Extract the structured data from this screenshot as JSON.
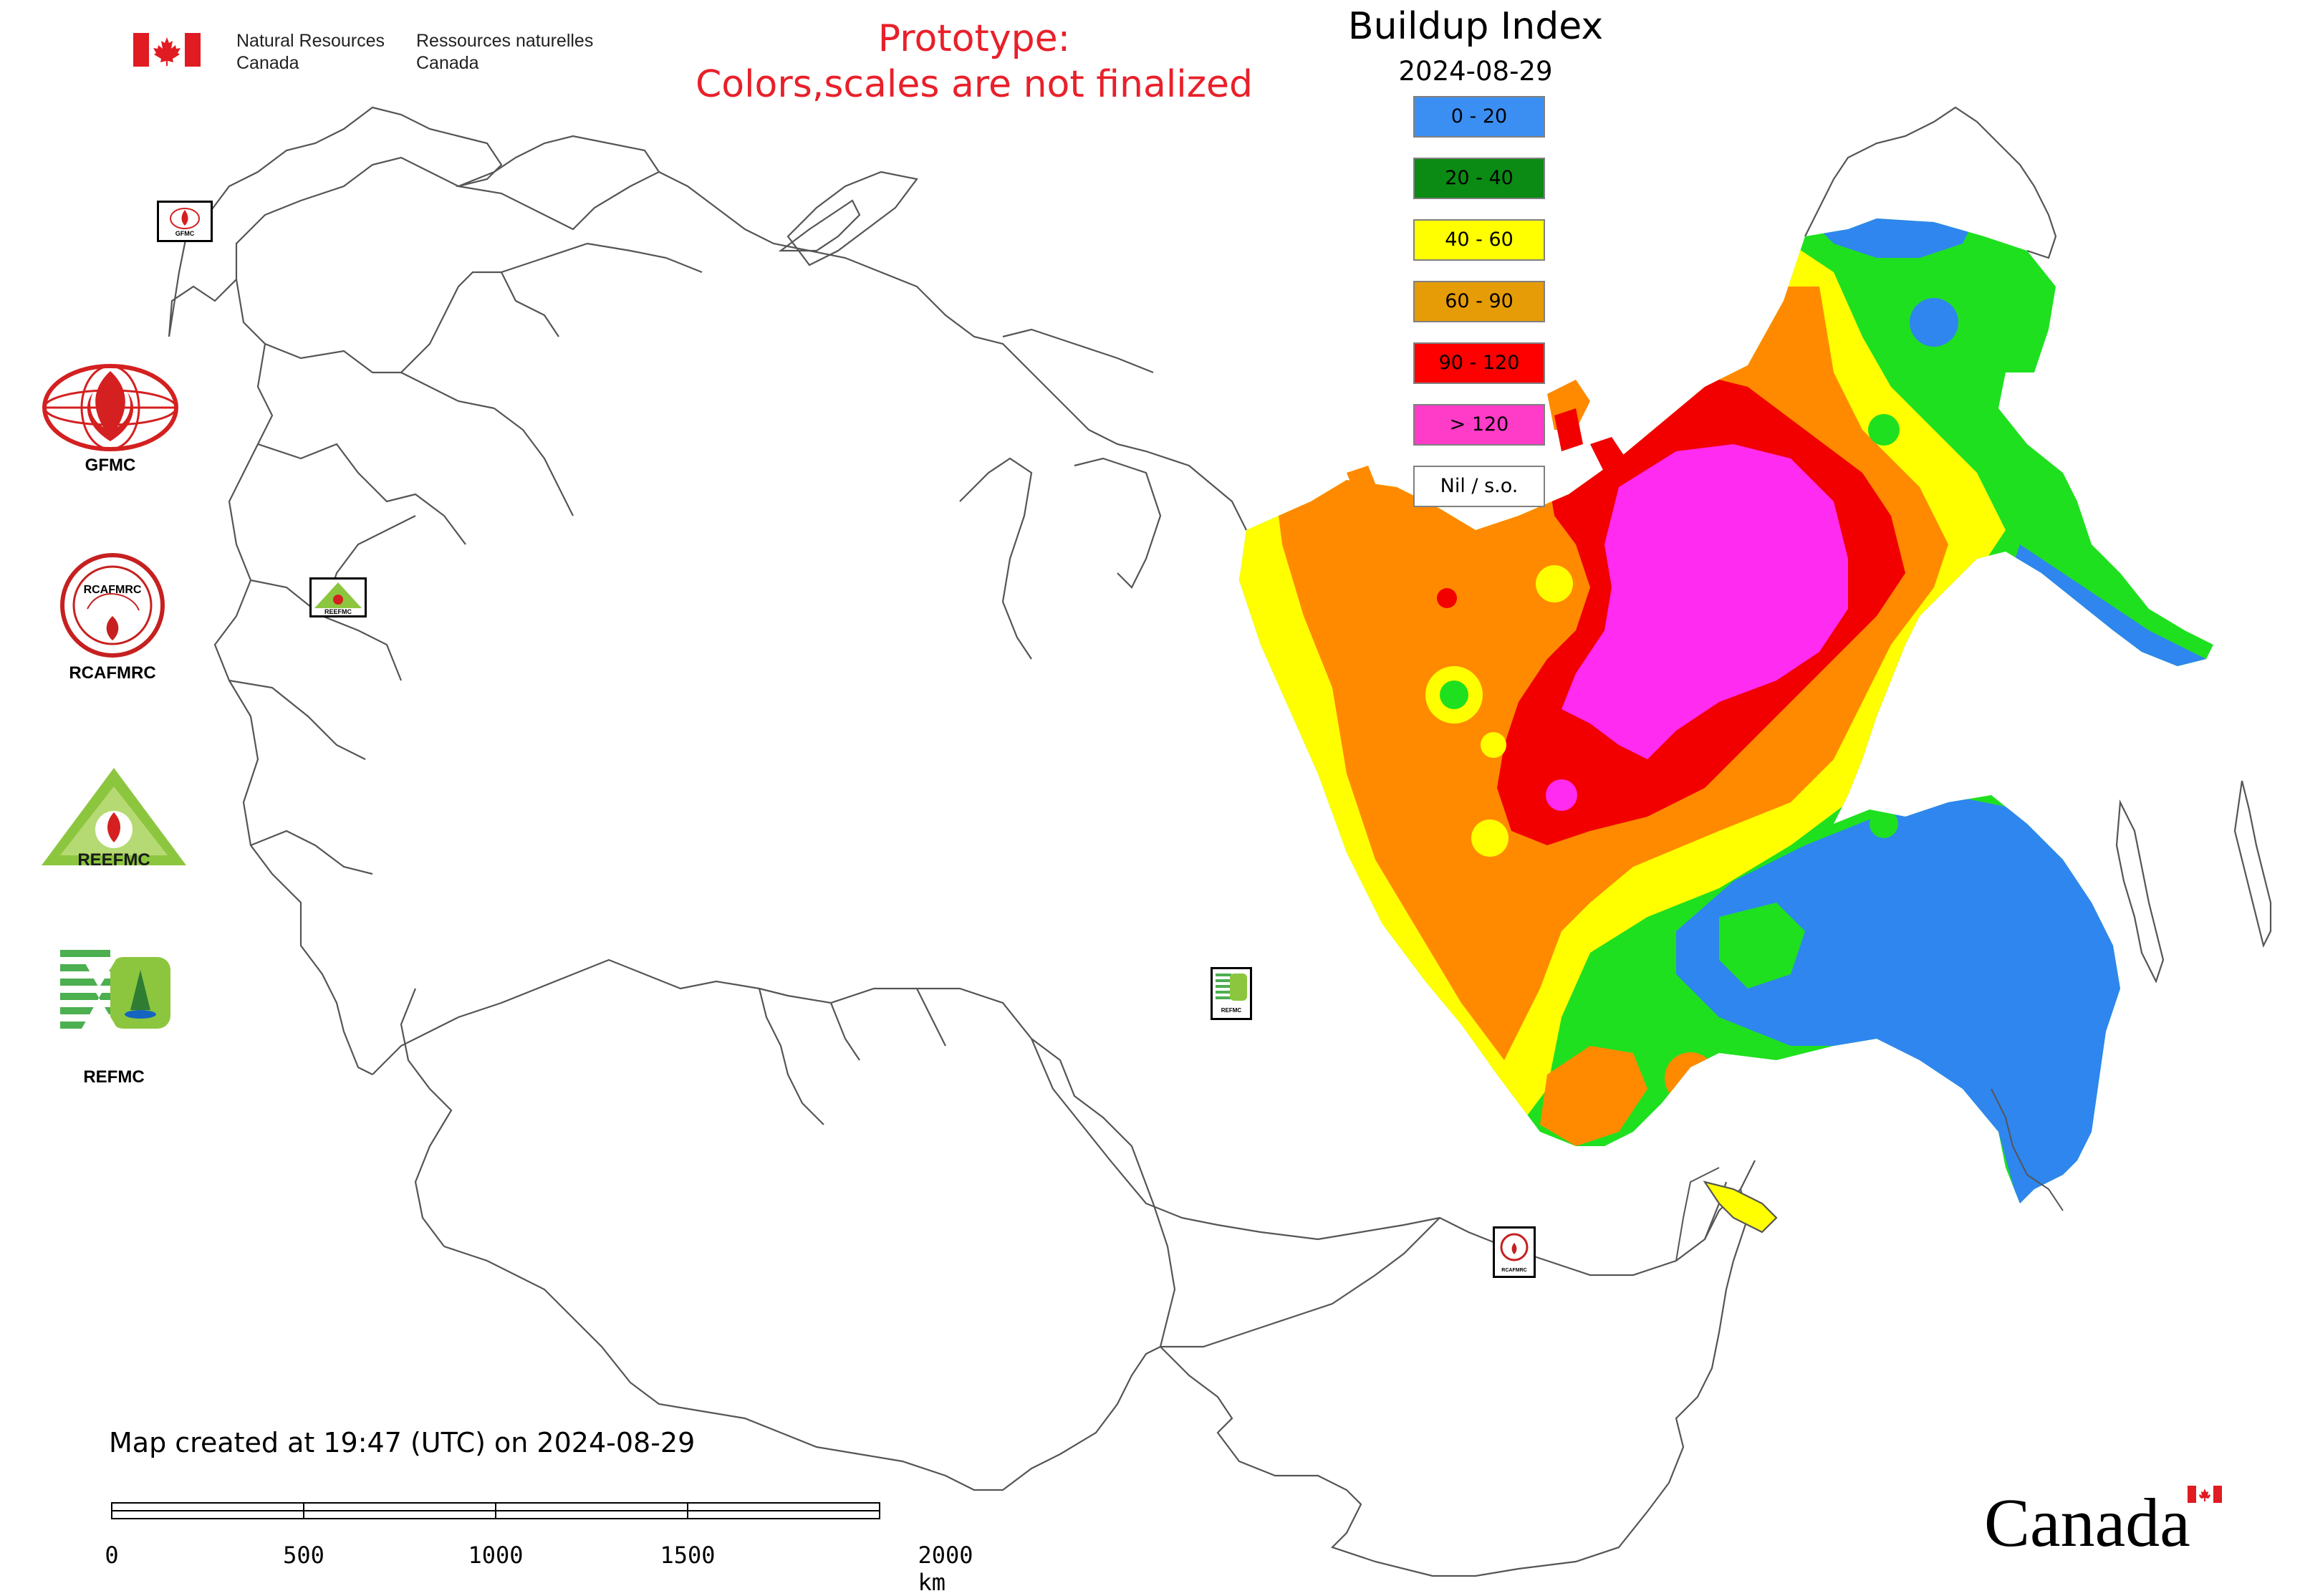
{
  "header": {
    "dept_en_line1": "Natural Resources",
    "dept_en_line2": "Canada",
    "dept_fr_line1": "Ressources naturelles",
    "dept_fr_line2": "Canada",
    "prototype_line1": "Prototype:",
    "prototype_line2": "Colors,scales are not finalized",
    "title": "Buildup Index",
    "date": "2024-08-29"
  },
  "legend": {
    "items": [
      {
        "label": "0 - 20",
        "color": "#3b8ff3"
      },
      {
        "label": "20 - 40",
        "color": "#0b8a14"
      },
      {
        "label": "40 - 60",
        "color": "#ffff00"
      },
      {
        "label": "60 - 90",
        "color": "#e59c06"
      },
      {
        "label": "90 - 120",
        "color": "#ff0000"
      },
      {
        "label": "> 120",
        "color": "#ff3cc8"
      },
      {
        "label": "Nil / s.o.",
        "color": "#ffffff"
      }
    ]
  },
  "logos": {
    "gfmc_label": "GFMC",
    "rcafmrc_label": "RCAFMRC",
    "reefmc_label": "REEFMC",
    "refmc_label": "REFMC",
    "reefmc_wordmark": "REEFMC",
    "rcafmrc_inner": "RCAFMRC",
    "small_gfmc": "GFMC",
    "small_reefmc": "REEFMC",
    "small_refmc": "REFMC",
    "small_rcafmrc": "RCAFMRC"
  },
  "map_colors": {
    "class_0_20": "#2f86ee",
    "class_20_40": "#1fe01f",
    "class_40_60": "#ffff00",
    "class_60_90": "#ff8a00",
    "class_90_120": "#f20000",
    "class_gt_120": "#ff2bf0",
    "outline": "#555555"
  },
  "footer": {
    "created": "Map created at 19:47 (UTC) on 2024-08-29",
    "scale_ticks": [
      "0",
      "500",
      "1000",
      "1500",
      "2000 km"
    ],
    "canada_wordmark": "Canada"
  }
}
